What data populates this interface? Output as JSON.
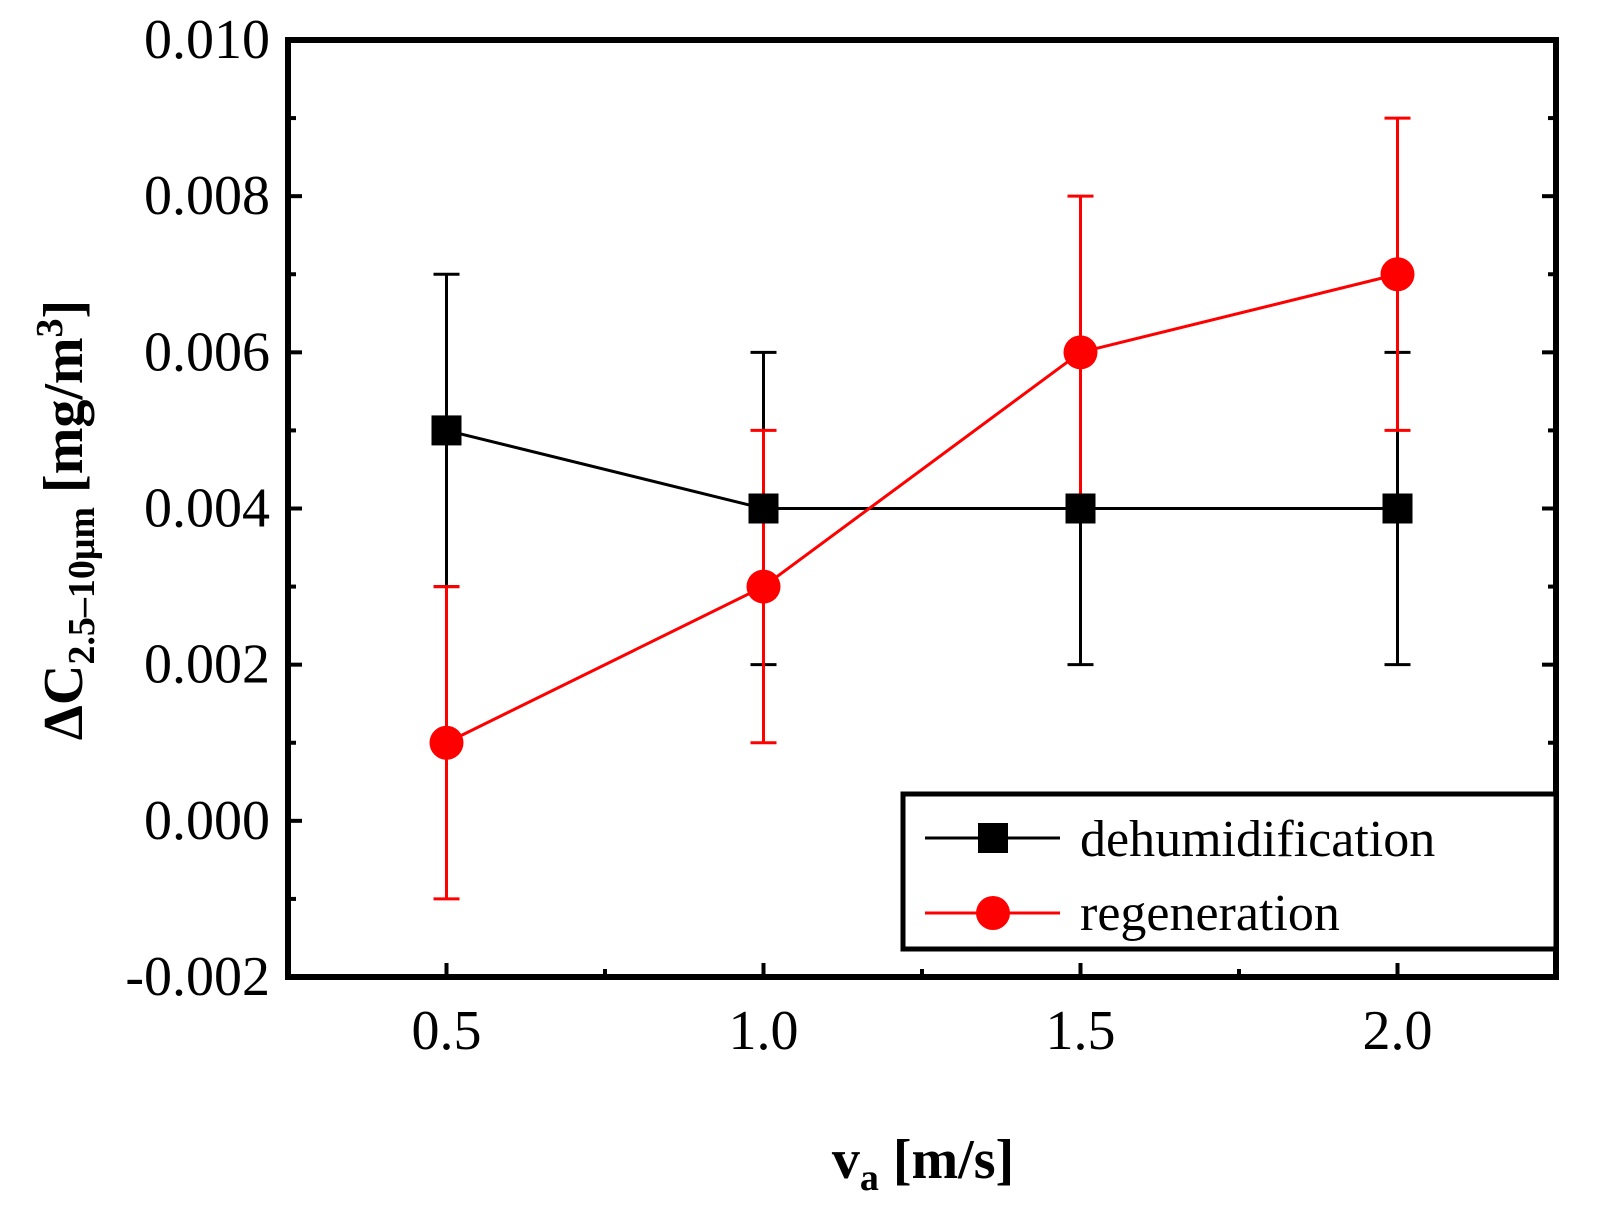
{
  "chart_data": {
    "type": "line",
    "x": [
      0.5,
      1.0,
      1.5,
      2.0
    ],
    "xlim": [
      0.25,
      2.25
    ],
    "ylim": [
      -0.002,
      0.01
    ],
    "xticks": [
      "0.5",
      "1.0",
      "1.5",
      "2.0"
    ],
    "xtick_values": [
      0.5,
      1.0,
      1.5,
      2.0
    ],
    "yticks": [
      "-0.002",
      "0.000",
      "0.002",
      "0.004",
      "0.006",
      "0.008",
      "0.010"
    ],
    "ytick_values": [
      -0.002,
      0.0,
      0.002,
      0.004,
      0.006,
      0.008,
      0.01
    ],
    "xlabel": {
      "main": "v",
      "sub": "a",
      "rest": " [m/s]"
    },
    "ylabel": {
      "main": "ΔC",
      "sub": "2.5–10μm",
      "rest": " [mg/m",
      "sup": "3",
      "close": "]"
    },
    "series": [
      {
        "name": "dehumidification",
        "color": "#000000",
        "marker": "square",
        "values": [
          0.005,
          0.004,
          0.004,
          0.004
        ],
        "error": [
          0.002,
          0.002,
          0.002,
          0.002
        ]
      },
      {
        "name": "regeneration",
        "color": "#ff0000",
        "marker": "circle",
        "values": [
          0.001,
          0.003,
          0.006,
          0.007
        ],
        "error": [
          0.002,
          0.002,
          0.002,
          0.002
        ]
      }
    ],
    "legend_position": "bottom-right"
  }
}
